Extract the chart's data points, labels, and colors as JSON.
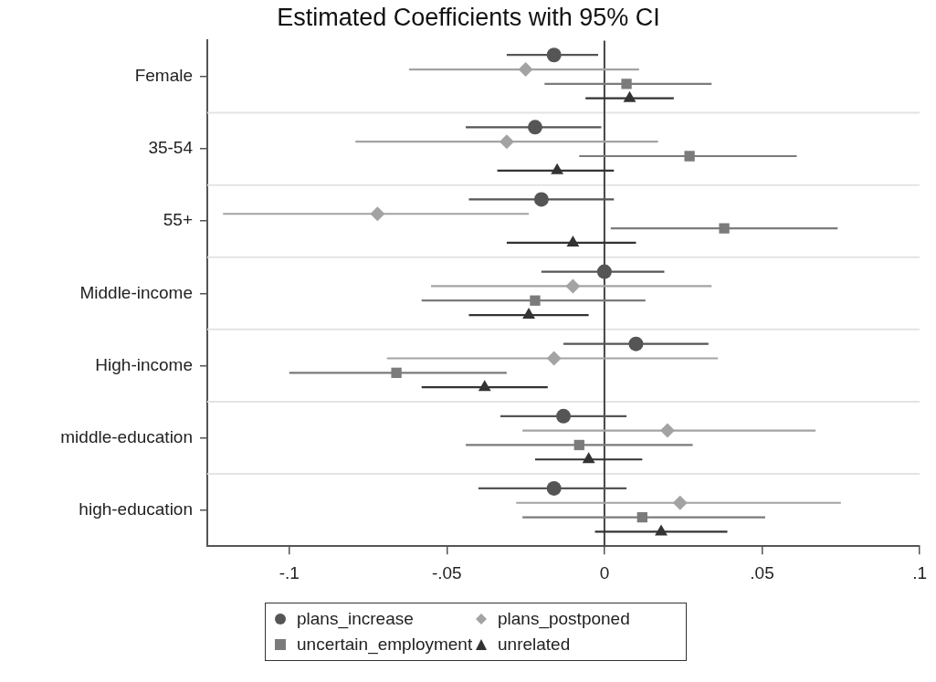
{
  "chart_data": {
    "type": "scatter",
    "orientation": "horizontal",
    "title": "Estimated Coefficients with 95% CI",
    "categories": [
      "Female",
      "35-54",
      "55+",
      "Middle-income",
      "High-income",
      "middle-education",
      "high-education"
    ],
    "series": [
      {
        "name": "plans_increase",
        "color": "#555555",
        "marker": "circle",
        "values": [
          -0.016,
          -0.022,
          -0.02,
          0.0,
          0.01,
          -0.013,
          -0.016
        ],
        "errors": [
          [
            -0.031,
            -0.002
          ],
          [
            -0.044,
            -0.001
          ],
          [
            -0.043,
            0.003
          ],
          [
            -0.02,
            0.019
          ],
          [
            -0.013,
            0.033
          ],
          [
            -0.033,
            0.007
          ],
          [
            -0.04,
            0.007
          ]
        ]
      },
      {
        "name": "plans_postponed",
        "color": "#a3a3a3",
        "marker": "diamond",
        "values": [
          -0.025,
          -0.031,
          -0.072,
          -0.01,
          -0.016,
          0.02,
          0.024
        ],
        "errors": [
          [
            -0.062,
            0.011
          ],
          [
            -0.079,
            0.017
          ],
          [
            -0.121,
            -0.024
          ],
          [
            -0.055,
            0.034
          ],
          [
            -0.069,
            0.036
          ],
          [
            -0.026,
            0.067
          ],
          [
            -0.028,
            0.075
          ]
        ]
      },
      {
        "name": "uncertain_employment",
        "color": "#7b7b7b",
        "marker": "square",
        "values": [
          0.007,
          0.027,
          0.038,
          -0.022,
          -0.066,
          -0.008,
          0.012
        ],
        "errors": [
          [
            -0.019,
            0.034
          ],
          [
            -0.008,
            0.061
          ],
          [
            0.002,
            0.074
          ],
          [
            -0.058,
            0.013
          ],
          [
            -0.1,
            -0.031
          ],
          [
            -0.044,
            0.028
          ],
          [
            -0.026,
            0.051
          ]
        ]
      },
      {
        "name": "unrelated",
        "color": "#333333",
        "marker": "triangle",
        "values": [
          0.008,
          -0.015,
          -0.01,
          -0.024,
          -0.038,
          -0.005,
          0.018
        ],
        "errors": [
          [
            -0.006,
            0.022
          ],
          [
            -0.034,
            0.003
          ],
          [
            -0.031,
            0.01
          ],
          [
            -0.043,
            -0.005
          ],
          [
            -0.058,
            -0.018
          ],
          [
            -0.022,
            0.012
          ],
          [
            -0.003,
            0.039
          ]
        ]
      }
    ],
    "xlim": [
      -0.126,
      0.1
    ],
    "xticks": [
      {
        "value": -0.1,
        "label": "-.1"
      },
      {
        "value": -0.05,
        "label": "-.05"
      },
      {
        "value": 0,
        "label": "0"
      },
      {
        "value": 0.05,
        "label": ".05"
      },
      {
        "value": 0.1,
        "label": ".1"
      }
    ],
    "ref_lines": [
      {
        "axis": "x",
        "value": 0,
        "color": "#444444"
      }
    ],
    "grid": "y",
    "legend": "bottom"
  }
}
